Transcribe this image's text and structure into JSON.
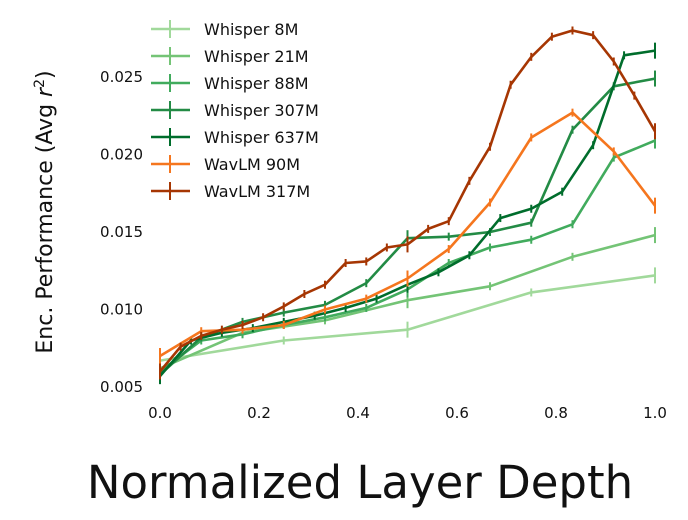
{
  "chart_data": {
    "type": "line",
    "title": "",
    "xlabel": "Normalized Layer Depth",
    "ylabel": "Enc. Performance (Avg r²)",
    "ylabel_parts": {
      "prefix": "Enc. Performance (Avg ",
      "var": "r",
      "sup": "2",
      "suffix": ")"
    },
    "xlim": [
      0.0,
      1.0
    ],
    "ylim": [
      0.005,
      0.028
    ],
    "xticks": [
      "0.0",
      "0.2",
      "0.4",
      "0.6",
      "0.8",
      "1.0"
    ],
    "yticks": [
      "0.005",
      "0.010",
      "0.015",
      "0.020",
      "0.025"
    ],
    "grid": false,
    "legend_position": "top-left",
    "error_bars": true,
    "series": [
      {
        "name": "Whisper 8M",
        "color": "#a1d99b",
        "x": [
          0,
          0.25,
          0.5,
          0.75,
          1.0
        ],
        "y": [
          0.0067,
          0.008,
          0.0087,
          0.0111,
          0.0122
        ]
      },
      {
        "name": "Whisper 21M",
        "color": "#74c476",
        "x": [
          0,
          0.1667,
          0.3333,
          0.5,
          0.6667,
          0.8333,
          1.0
        ],
        "y": [
          0.0062,
          0.0085,
          0.0093,
          0.0106,
          0.0115,
          0.0134,
          0.0148
        ]
      },
      {
        "name": "Whisper 88M",
        "color": "#41ab5d",
        "x": [
          0,
          0.0833,
          0.1667,
          0.25,
          0.3333,
          0.4167,
          0.5,
          0.5833,
          0.6667,
          0.75,
          0.8333,
          0.9167,
          1.0
        ],
        "y": [
          0.006,
          0.008,
          0.0084,
          0.009,
          0.0095,
          0.0101,
          0.0113,
          0.013,
          0.014,
          0.0145,
          0.0155,
          0.0198,
          0.0209
        ]
      },
      {
        "name": "Whisper 307M",
        "color": "#238b45",
        "x": [
          0,
          0.0833,
          0.1667,
          0.25,
          0.3333,
          0.4167,
          0.5,
          0.5833,
          0.6667,
          0.75,
          0.8333,
          0.9167,
          1.0
        ],
        "y": [
          0.0058,
          0.0082,
          0.0092,
          0.0098,
          0.0103,
          0.0117,
          0.0146,
          0.0147,
          0.015,
          0.0156,
          0.0216,
          0.0244,
          0.0249
        ]
      },
      {
        "name": "Whisper 637M",
        "color": "#006d2c",
        "x": [
          0,
          0.0625,
          0.125,
          0.1875,
          0.25,
          0.3125,
          0.375,
          0.4375,
          0.5,
          0.5625,
          0.625,
          0.6875,
          0.75,
          0.8125,
          0.875,
          0.9375,
          1.0
        ],
        "y": [
          0.0057,
          0.008,
          0.0085,
          0.0088,
          0.0092,
          0.0096,
          0.0101,
          0.0107,
          0.0116,
          0.0124,
          0.0135,
          0.0159,
          0.0165,
          0.0176,
          0.0206,
          0.0264,
          0.0267
        ]
      },
      {
        "name": "WavLM 90M",
        "color": "#f5761e",
        "x": [
          0,
          0.0833,
          0.1667,
          0.25,
          0.3333,
          0.4167,
          0.5,
          0.5833,
          0.6667,
          0.75,
          0.8333,
          0.9167,
          1.0
        ],
        "y": [
          0.007,
          0.0086,
          0.0087,
          0.009,
          0.01,
          0.0107,
          0.012,
          0.0139,
          0.0169,
          0.0211,
          0.0227,
          0.0202,
          0.0167
        ]
      },
      {
        "name": "WavLM 317M",
        "color": "#a63603",
        "x": [
          0,
          0.0417,
          0.0833,
          0.125,
          0.1667,
          0.2083,
          0.25,
          0.2917,
          0.3333,
          0.375,
          0.4167,
          0.4583,
          0.5,
          0.5417,
          0.5833,
          0.625,
          0.6667,
          0.7083,
          0.75,
          0.7917,
          0.8333,
          0.875,
          0.9167,
          0.9583,
          1.0
        ],
        "y": [
          0.006,
          0.0076,
          0.0083,
          0.0087,
          0.009,
          0.0095,
          0.0102,
          0.011,
          0.0116,
          0.013,
          0.0131,
          0.014,
          0.0142,
          0.0152,
          0.0157,
          0.0183,
          0.0205,
          0.0245,
          0.0263,
          0.0276,
          0.028,
          0.0277,
          0.026,
          0.0238,
          0.0215
        ]
      }
    ]
  }
}
